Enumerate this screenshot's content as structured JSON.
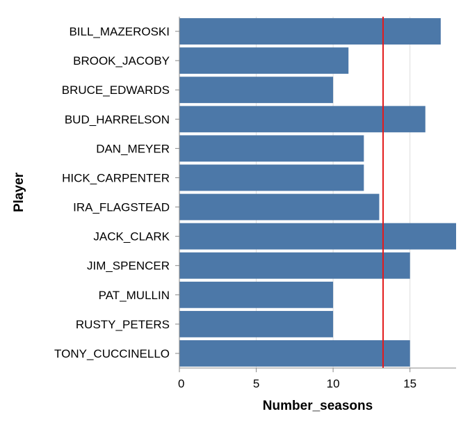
{
  "chart_data": {
    "type": "bar",
    "orientation": "horizontal",
    "categories": [
      "BILL_MAZEROSKI",
      "BROOK_JACOBY",
      "BRUCE_EDWARDS",
      "BUD_HARRELSON",
      "DAN_MEYER",
      "HICK_CARPENTER",
      "IRA_FLAGSTEAD",
      "JACK_CLARK",
      "JIM_SPENCER",
      "PAT_MULLIN",
      "RUSTY_PETERS",
      "TONY_CUCCINELLO"
    ],
    "values": [
      17,
      11,
      10,
      16,
      12,
      12,
      13,
      18,
      15,
      10,
      10,
      15
    ],
    "xlabel": "Number_seasons",
    "ylabel": "Player",
    "xlim": [
      0,
      18
    ],
    "xticks": [
      0,
      5,
      10,
      15
    ],
    "grid": true,
    "reference_line": {
      "value": 13.25,
      "color": "#e41a1c"
    },
    "bar_color": "#4c78a8"
  }
}
